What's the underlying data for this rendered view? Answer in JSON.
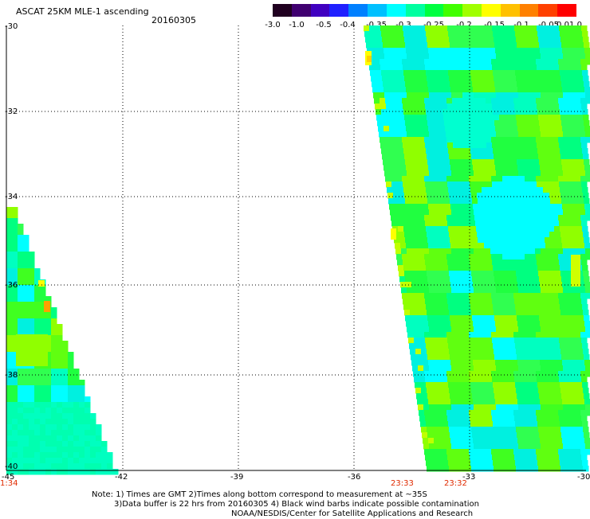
{
  "header": {
    "title": "ASCAT 25KM MLE-1 ascending",
    "date": "20160305"
  },
  "colorbar": {
    "ticks": [
      "-3.0",
      "-1.0",
      "-0.5",
      "-0.4",
      "-0.35",
      "-0.3",
      "-0.25",
      "-0.2",
      "-0.15",
      "-0.1",
      "-0.05",
      "0.0",
      "1.0"
    ],
    "colors": [
      "#200020",
      "#400070",
      "#4000c0",
      "#2020ff",
      "#0080ff",
      "#00c0ff",
      "#00ffff",
      "#00ffa0",
      "#00ff40",
      "#40ff00",
      "#a0ff00",
      "#ffff00",
      "#ffc000",
      "#ff8000",
      "#ff4000",
      "#ff0000"
    ]
  },
  "map": {
    "lat_labels": [
      "-30",
      "-32",
      "-34",
      "-36",
      "-38",
      "-40"
    ],
    "lon_labels": [
      "-45",
      "-42",
      "-39",
      "-36",
      "-33",
      "-30"
    ],
    "time_labels": [
      "1:34",
      "23:33",
      "23:32"
    ]
  },
  "notes": {
    "line1": "Note: 1) Times are GMT 2)Times along bottom correspond to measurement at ~35S",
    "line2": "3)Data buffer is 22 hrs from 20160305 4) Black wind barbs indicate possible contamination",
    "line3": "NOAA/NESDIS/Center for Satellite Applications and Research"
  }
}
